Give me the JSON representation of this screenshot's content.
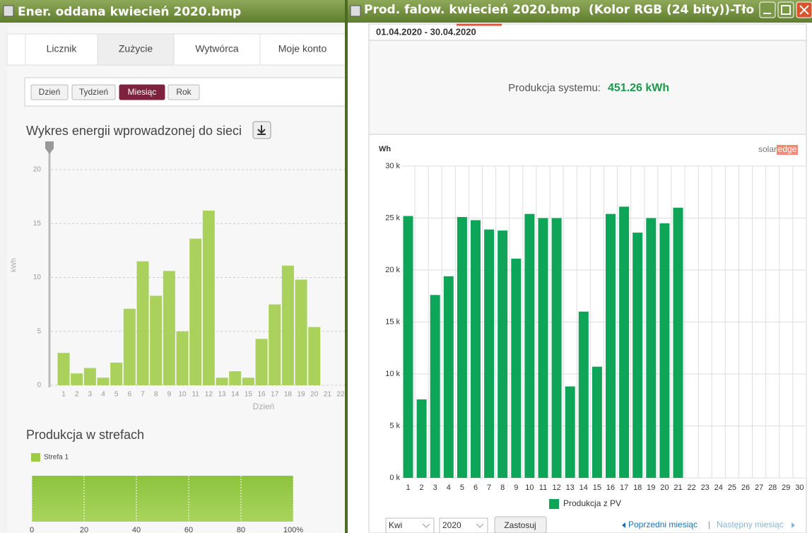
{
  "left_window": {
    "title": "Ener. oddana kwiecień 2020.bmp",
    "tabs": [
      "Licznik",
      "Zużycie",
      "Wytwórca",
      "Moje konto"
    ],
    "period_buttons": [
      "Dzień",
      "Tydzień",
      "Miesiąc",
      "Rok"
    ],
    "chart": {
      "type": "bar",
      "title": "Wykres energii wprowadzonej do sieci",
      "y_label": "kWh",
      "x_label": "Dzień",
      "categories": [
        "1",
        "2",
        "3",
        "4",
        "5",
        "6",
        "7",
        "8",
        "9",
        "10",
        "11",
        "12",
        "13",
        "14",
        "15",
        "16",
        "17",
        "18",
        "19",
        "20",
        "21",
        "22"
      ],
      "values": [
        3.0,
        1.1,
        1.6,
        0.7,
        2.1,
        7.1,
        11.5,
        8.3,
        10.6,
        5.0,
        13.6,
        16.2,
        0.7,
        1.3,
        0.7,
        4.3,
        7.5,
        11.1,
        9.8,
        5.4,
        null,
        null
      ],
      "color": "#a9d15b",
      "ylim": [
        0,
        20
      ],
      "yticks": [
        0,
        5,
        10,
        15,
        20
      ],
      "grid": true
    },
    "zones_chart": {
      "type": "bar",
      "title": "Produkcja w strefach",
      "series": [
        {
          "name": "Strefa 1",
          "color": "#9ccc46",
          "values": [
            100
          ]
        }
      ],
      "xlim": [
        0,
        100
      ],
      "xticks": [
        0,
        20,
        40,
        60,
        80,
        {
          "value": 100,
          "label": "100%"
        }
      ]
    }
  },
  "right_window": {
    "title": "Prod. falow. kwiecień 2020.bmp  (Kolor RGB (24 bity))-Tło",
    "date_range": "01.04.2020 - 30.04.2020",
    "summary_label": "Produkcja systemu:",
    "summary_value": "451.26 kWh",
    "chart": {
      "type": "bar",
      "y_label": "Wh",
      "logo": [
        "solar",
        "edge"
      ],
      "categories": [
        "1",
        "2",
        "3",
        "4",
        "5",
        "6",
        "7",
        "8",
        "9",
        "10",
        "11",
        "12",
        "13",
        "14",
        "15",
        "16",
        "17",
        "18",
        "19",
        "20",
        "21",
        "22",
        "23",
        "24",
        "25",
        "26",
        "27",
        "28",
        "29",
        "30"
      ],
      "series": [
        {
          "name": "Produkcja z PV",
          "color": "#0ea558",
          "values": [
            25200,
            7550,
            17600,
            19400,
            25100,
            24800,
            23900,
            23800,
            21100,
            25400,
            25000,
            25000,
            8800,
            16000,
            10700,
            25400,
            26100,
            23600,
            25000,
            24500,
            26000,
            null,
            null,
            null,
            null,
            null,
            null,
            null,
            null,
            null
          ]
        }
      ],
      "ylim": [
        0,
        30000
      ],
      "yticks": [
        {
          "value": 0,
          "label": "0 k"
        },
        {
          "value": 5000,
          "label": "5 k"
        },
        {
          "value": 10000,
          "label": "10 k"
        },
        {
          "value": 15000,
          "label": "15 k"
        },
        {
          "value": 20000,
          "label": "20 k"
        },
        {
          "value": 25000,
          "label": "25 k"
        },
        {
          "value": 30000,
          "label": "30 k"
        }
      ],
      "grid": true
    },
    "controls": {
      "month": "Kwi",
      "year": "2020",
      "apply": "Zastosuj",
      "prev": "Poprzedni miesiąc",
      "separator": "|",
      "next": "Następny miesiąc"
    }
  }
}
